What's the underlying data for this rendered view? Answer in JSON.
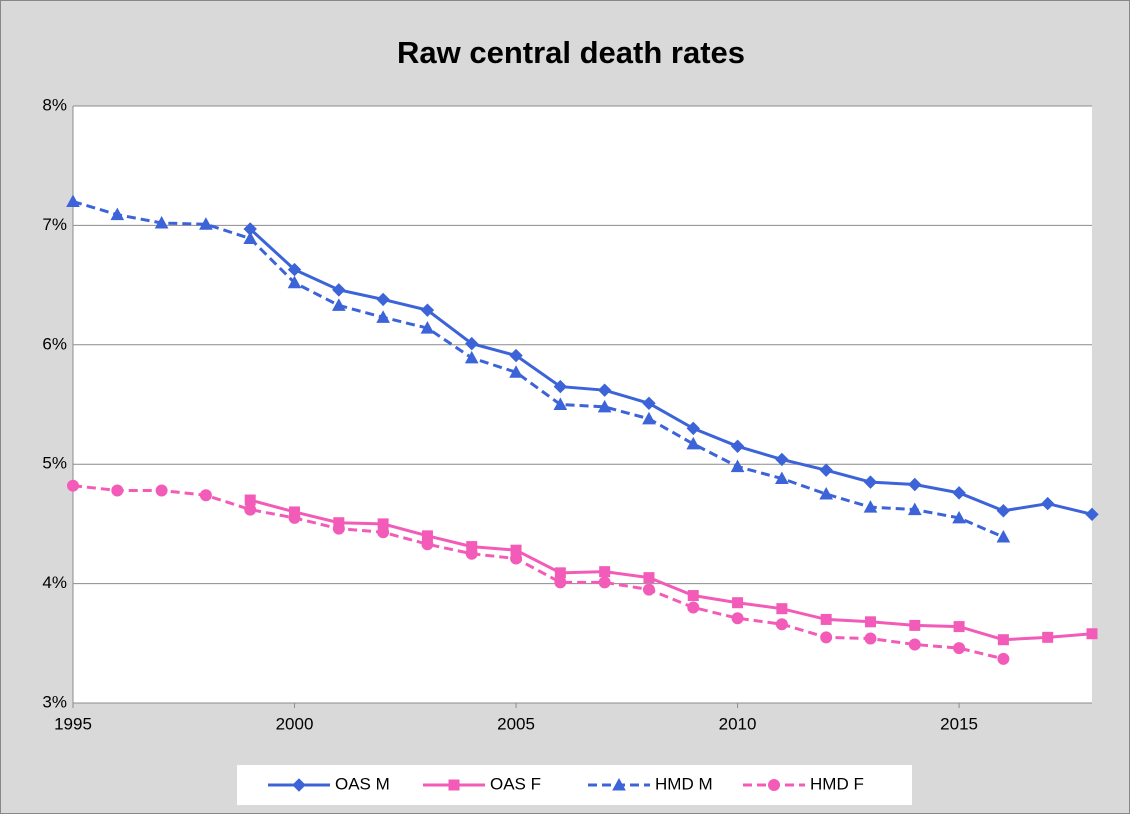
{
  "chart_data": {
    "type": "line",
    "title": "Raw central death rates",
    "x": [
      1995,
      1996,
      1997,
      1998,
      1999,
      2000,
      2001,
      2002,
      2003,
      2004,
      2005,
      2006,
      2007,
      2008,
      2009,
      2010,
      2011,
      2012,
      2013,
      2014,
      2015,
      2016,
      2017,
      2018
    ],
    "xlim": [
      1995,
      2018
    ],
    "xticks": [
      1995,
      2000,
      2005,
      2010,
      2015
    ],
    "ylim": [
      3,
      8
    ],
    "yticks": [
      {
        "value": 3,
        "label": "3%"
      },
      {
        "value": 4,
        "label": "4%"
      },
      {
        "value": 5,
        "label": "5%"
      },
      {
        "value": 6,
        "label": "6%"
      },
      {
        "value": 7,
        "label": "7%"
      },
      {
        "value": 8,
        "label": "8%"
      }
    ],
    "grid": true,
    "legend": "bottom",
    "series": [
      {
        "name": "OAS M",
        "color": "#3c64d8",
        "marker": "diamond",
        "dashed": false,
        "values": [
          null,
          null,
          null,
          null,
          6.97,
          6.63,
          6.46,
          6.38,
          6.29,
          6.01,
          5.91,
          5.65,
          5.62,
          5.51,
          5.3,
          5.15,
          5.04,
          4.95,
          4.85,
          4.83,
          4.76,
          4.61,
          4.67,
          4.58
        ]
      },
      {
        "name": "OAS F",
        "color": "#f25cb8",
        "marker": "square",
        "dashed": false,
        "values": [
          null,
          null,
          null,
          null,
          4.7,
          4.6,
          4.51,
          4.5,
          4.4,
          4.31,
          4.28,
          4.09,
          4.1,
          4.05,
          3.9,
          3.84,
          3.79,
          3.7,
          3.68,
          3.65,
          3.64,
          3.53,
          3.55,
          3.58
        ]
      },
      {
        "name": "HMD M",
        "color": "#3c64d8",
        "marker": "triangle",
        "dashed": true,
        "values": [
          7.2,
          7.09,
          7.02,
          7.01,
          6.89,
          6.52,
          6.33,
          6.23,
          6.14,
          5.89,
          5.77,
          5.5,
          5.48,
          5.38,
          5.17,
          4.98,
          4.88,
          4.75,
          4.64,
          4.62,
          4.55,
          4.39,
          null,
          null
        ]
      },
      {
        "name": "HMD F",
        "color": "#f25cb8",
        "marker": "circle",
        "dashed": true,
        "values": [
          4.82,
          4.78,
          4.78,
          4.74,
          4.62,
          4.55,
          4.46,
          4.43,
          4.33,
          4.25,
          4.21,
          4.01,
          4.01,
          3.95,
          3.8,
          3.71,
          3.66,
          3.55,
          3.54,
          3.49,
          3.46,
          3.37,
          null,
          null
        ]
      }
    ]
  }
}
